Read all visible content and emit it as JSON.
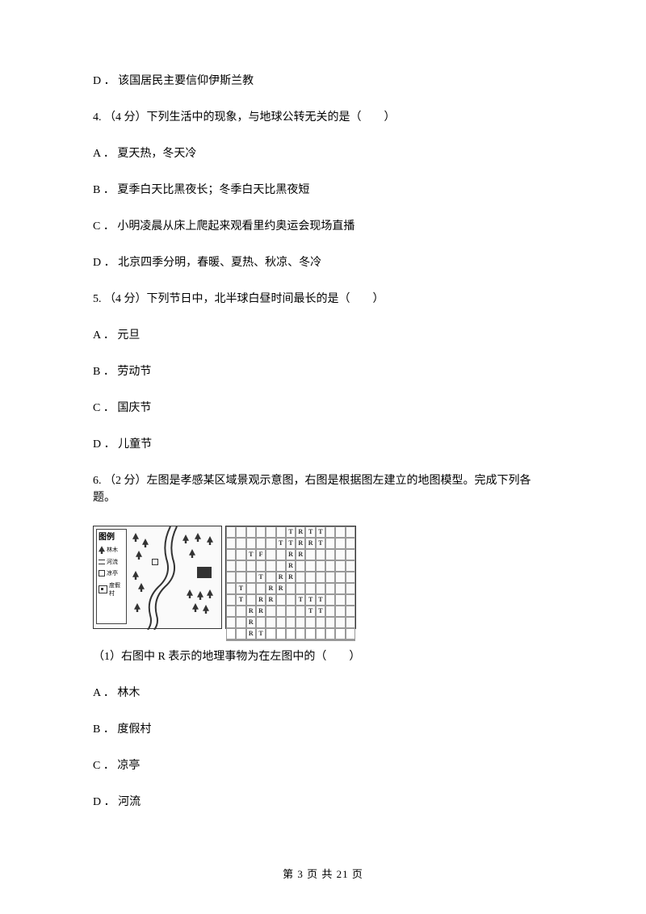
{
  "items": [
    "D ． 该国居民主要信仰伊斯兰教",
    "4.  （4 分）下列生活中的现象，与地球公转无关的是（　　）",
    "A ． 夏天热，冬天冷",
    "B ． 夏季白天比黑夜长；冬季白天比黑夜短",
    "C ． 小明凌晨从床上爬起来观看里约奥运会现场直播",
    "D ． 北京四季分明，春暖、夏热、秋凉、冬冷",
    "5.  （4 分）下列节日中，北半球白昼时间最长的是（　　）",
    "A ． 元旦",
    "B ． 劳动节",
    "C ． 国庆节",
    "D ． 儿童节",
    "6.  （2 分）左图是孝感某区域景观示意图，右图是根据图左建立的地图模型。完成下列各题。"
  ],
  "legend": {
    "title": "图例",
    "items": [
      "林木",
      "河流",
      "凉亭",
      "度假村"
    ]
  },
  "grid_labels": {
    "0": {
      "6": "T",
      "7": "R",
      "8": "T",
      "9": "T"
    },
    "1": {
      "5": "T",
      "6": "T",
      "7": "R",
      "8": "R",
      "9": "T"
    },
    "2": {
      "2": "T",
      "3": "F",
      "6": "R",
      "7": "R"
    },
    "3": {
      "6": "R"
    },
    "4": {
      "3": "T",
      "5": "R",
      "6": "R"
    },
    "5": {
      "1": "T",
      "4": "R",
      "5": "R"
    },
    "6": {
      "1": "T",
      "3": "R",
      "4": "R",
      "7": "T",
      "8": "T",
      "9": "T"
    },
    "7": {
      "2": "R",
      "3": "R",
      "8": "T",
      "9": "T"
    },
    "8": {
      "2": "R"
    },
    "9": {
      "2": "R",
      "3": "T"
    },
    "10": {}
  },
  "sub_question": "（1）右图中 R 表示的地理事物为在左图中的（　　）",
  "sub_options": [
    "A ． 林木",
    "B ． 度假村",
    "C ． 凉亭",
    "D ． 河流"
  ],
  "footer": "第  3  页  共  21  页"
}
